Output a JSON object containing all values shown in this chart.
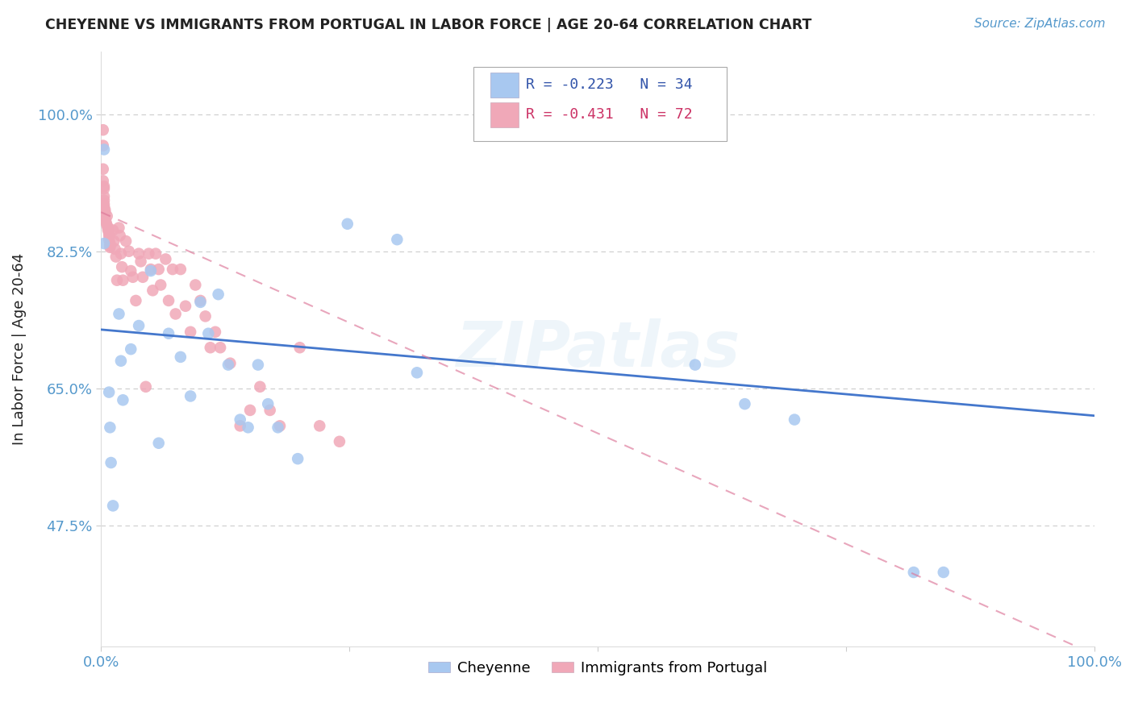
{
  "title": "CHEYENNE VS IMMIGRANTS FROM PORTUGAL IN LABOR FORCE | AGE 20-64 CORRELATION CHART",
  "source": "Source: ZipAtlas.com",
  "ylabel": "In Labor Force | Age 20-64",
  "xlim": [
    0.0,
    1.0
  ],
  "ylim": [
    0.32,
    1.08
  ],
  "yticks": [
    0.475,
    0.65,
    0.825,
    1.0
  ],
  "ytick_labels": [
    "47.5%",
    "65.0%",
    "82.5%",
    "100.0%"
  ],
  "xticks": [
    0.0,
    0.25,
    0.5,
    0.75,
    1.0
  ],
  "xtick_labels": [
    "0.0%",
    "",
    "",
    "",
    "100.0%"
  ],
  "grid_color": "#cccccc",
  "background_color": "#ffffff",
  "cheyenne_color": "#a8c8f0",
  "portugal_color": "#f0a8b8",
  "cheyenne_line_color": "#4477cc",
  "portugal_line_color": "#dd7799",
  "watermark": "ZIPatlas",
  "legend_R_cheyenne": "R = -0.223",
  "legend_N_cheyenne": "N = 34",
  "legend_R_portugal": "R = -0.431",
  "legend_N_portugal": "N = 72",
  "cheyenne_line_x0": 0.0,
  "cheyenne_line_y0": 0.725,
  "cheyenne_line_x1": 1.0,
  "cheyenne_line_y1": 0.615,
  "portugal_line_x0": 0.0,
  "portugal_line_y0": 0.875,
  "portugal_line_x1": 1.0,
  "portugal_line_y1": 0.31,
  "cheyenne_x": [
    0.003,
    0.003,
    0.008,
    0.009,
    0.01,
    0.012,
    0.018,
    0.02,
    0.022,
    0.03,
    0.038,
    0.05,
    0.058,
    0.068,
    0.08,
    0.09,
    0.1,
    0.108,
    0.118,
    0.128,
    0.14,
    0.148,
    0.158,
    0.168,
    0.178,
    0.198,
    0.248,
    0.298,
    0.318,
    0.598,
    0.648,
    0.698,
    0.818,
    0.848
  ],
  "cheyenne_y": [
    0.955,
    0.835,
    0.645,
    0.6,
    0.555,
    0.5,
    0.745,
    0.685,
    0.635,
    0.7,
    0.73,
    0.8,
    0.58,
    0.72,
    0.69,
    0.64,
    0.76,
    0.72,
    0.77,
    0.68,
    0.61,
    0.6,
    0.68,
    0.63,
    0.6,
    0.56,
    0.86,
    0.84,
    0.67,
    0.68,
    0.63,
    0.61,
    0.415,
    0.415
  ],
  "portugal_x": [
    0.002,
    0.002,
    0.002,
    0.002,
    0.003,
    0.003,
    0.003,
    0.003,
    0.003,
    0.003,
    0.004,
    0.004,
    0.004,
    0.004,
    0.005,
    0.006,
    0.006,
    0.007,
    0.007,
    0.008,
    0.008,
    0.008,
    0.009,
    0.009,
    0.009,
    0.012,
    0.013,
    0.014,
    0.015,
    0.016,
    0.018,
    0.019,
    0.02,
    0.021,
    0.022,
    0.025,
    0.028,
    0.03,
    0.032,
    0.035,
    0.038,
    0.04,
    0.042,
    0.045,
    0.048,
    0.05,
    0.052,
    0.055,
    0.058,
    0.06,
    0.065,
    0.068,
    0.072,
    0.075,
    0.08,
    0.085,
    0.09,
    0.095,
    0.1,
    0.105,
    0.11,
    0.115,
    0.12,
    0.13,
    0.14,
    0.15,
    0.16,
    0.17,
    0.18,
    0.2,
    0.22,
    0.24
  ],
  "portugal_y": [
    0.98,
    0.96,
    0.93,
    0.915,
    0.908,
    0.905,
    0.895,
    0.89,
    0.885,
    0.882,
    0.878,
    0.875,
    0.87,
    0.866,
    0.862,
    0.87,
    0.858,
    0.855,
    0.852,
    0.848,
    0.845,
    0.84,
    0.835,
    0.832,
    0.83,
    0.852,
    0.838,
    0.828,
    0.818,
    0.788,
    0.855,
    0.845,
    0.822,
    0.805,
    0.788,
    0.838,
    0.825,
    0.8,
    0.792,
    0.762,
    0.822,
    0.812,
    0.792,
    0.652,
    0.822,
    0.802,
    0.775,
    0.822,
    0.802,
    0.782,
    0.815,
    0.762,
    0.802,
    0.745,
    0.802,
    0.755,
    0.722,
    0.782,
    0.762,
    0.742,
    0.702,
    0.722,
    0.702,
    0.682,
    0.602,
    0.622,
    0.652,
    0.622,
    0.602,
    0.702,
    0.602,
    0.582
  ],
  "title_color": "#222222",
  "tick_color": "#5599cc"
}
